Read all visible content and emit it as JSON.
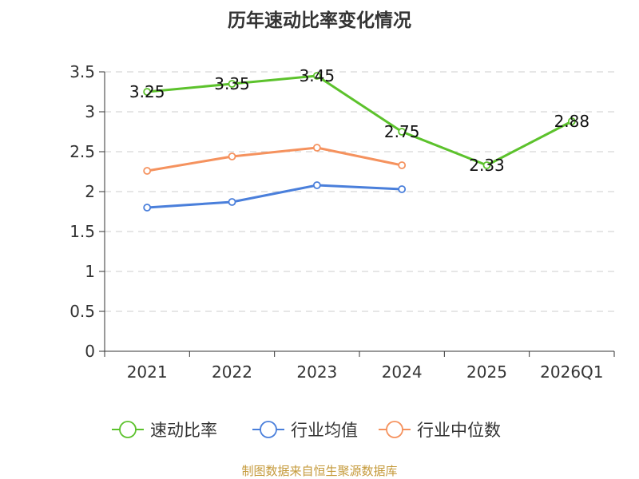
{
  "chart_data": {
    "type": "line",
    "title": "历年速动比率变化情况",
    "categories": [
      "2021",
      "2022",
      "2023",
      "2024",
      "2025",
      "2026Q1"
    ],
    "ylim": [
      0,
      3.5
    ],
    "yticks": [
      "0",
      "0.5",
      "1",
      "1.5",
      "2",
      "2.5",
      "3",
      "3.5"
    ],
    "xlabel": "",
    "ylabel": "",
    "grid": "horizontal dashed",
    "legend_position": "bottom",
    "series": [
      {
        "name": "速动比率",
        "color": "#5cc22c",
        "values": [
          3.25,
          3.35,
          3.45,
          2.75,
          2.33,
          2.88
        ],
        "labels": [
          "3.25",
          "3.35",
          "3.45",
          "2.75",
          "2.33",
          "2.88"
        ]
      },
      {
        "name": "行业均值",
        "color": "#4a7fdb",
        "values": [
          1.8,
          1.87,
          2.08,
          2.03,
          null,
          null
        ]
      },
      {
        "name": "行业中位数",
        "color": "#f5925e",
        "values": [
          2.26,
          2.44,
          2.55,
          2.33,
          null,
          null
        ]
      }
    ]
  },
  "source": "制图数据来自恒生聚源数据库"
}
